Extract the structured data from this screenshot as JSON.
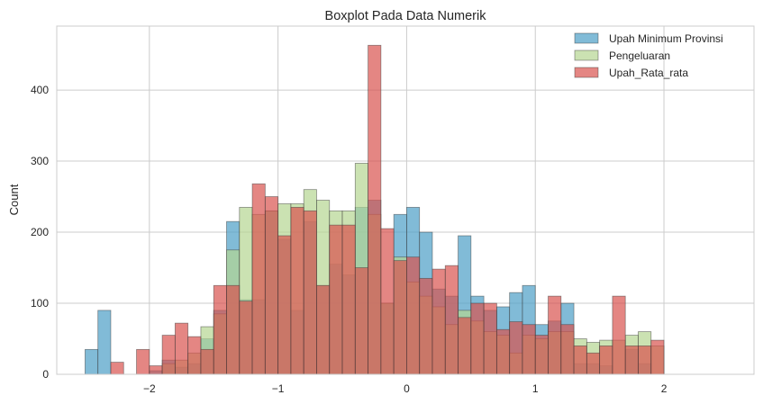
{
  "chart_data": {
    "type": "bar",
    "subtype": "overlapping-histogram",
    "title": "Boxplot Pada Data Numerik",
    "xlabel": "",
    "ylabel": "Count",
    "xlim": [
      -2.72,
      2.7
    ],
    "ylim": [
      0,
      490
    ],
    "grid": true,
    "legend_position": "top-right",
    "x_ticks": [
      {
        "value": -2,
        "label": "−2"
      },
      {
        "value": -1,
        "label": "−1"
      },
      {
        "value": 0,
        "label": "0"
      },
      {
        "value": 1,
        "label": "1"
      },
      {
        "value": 2,
        "label": "2"
      }
    ],
    "y_ticks": [
      {
        "value": 0,
        "label": "0"
      },
      {
        "value": 100,
        "label": "100"
      },
      {
        "value": 200,
        "label": "200"
      },
      {
        "value": 300,
        "label": "300"
      },
      {
        "value": 400,
        "label": "400"
      }
    ],
    "bin_start": -2.5,
    "bin_width": 0.1,
    "series": [
      {
        "name": "Upah Minimum Provinsi",
        "color": "#4c9ec6",
        "values": [
          35,
          90,
          0,
          0,
          0,
          5,
          20,
          10,
          15,
          50,
          90,
          215,
          105,
          105,
          230,
          190,
          90,
          215,
          125,
          155,
          140,
          235,
          245,
          100,
          225,
          235,
          200,
          120,
          110,
          195,
          110,
          90,
          95,
          115,
          125,
          70,
          75,
          100,
          15,
          15,
          12,
          0,
          35,
          15,
          0
        ]
      },
      {
        "name": "Pengeluaran",
        "color": "#b5d691",
        "values": [
          0,
          0,
          0,
          0,
          0,
          0,
          15,
          20,
          30,
          67,
          85,
          175,
          235,
          225,
          230,
          240,
          240,
          260,
          245,
          230,
          230,
          297,
          225,
          100,
          165,
          130,
          110,
          95,
          70,
          90,
          75,
          60,
          55,
          30,
          55,
          50,
          60,
          60,
          50,
          45,
          48,
          48,
          55,
          60,
          40
        ]
      },
      {
        "name": "Upah_Rata_rata",
        "color": "#d9534f",
        "values": [
          0,
          0,
          17,
          0,
          35,
          12,
          55,
          72,
          53,
          35,
          125,
          125,
          103,
          268,
          250,
          195,
          235,
          230,
          125,
          210,
          210,
          150,
          463,
          205,
          160,
          165,
          135,
          148,
          153,
          80,
          100,
          100,
          63,
          74,
          70,
          55,
          110,
          70,
          40,
          30,
          40,
          110,
          40,
          40,
          48
        ]
      }
    ]
  }
}
